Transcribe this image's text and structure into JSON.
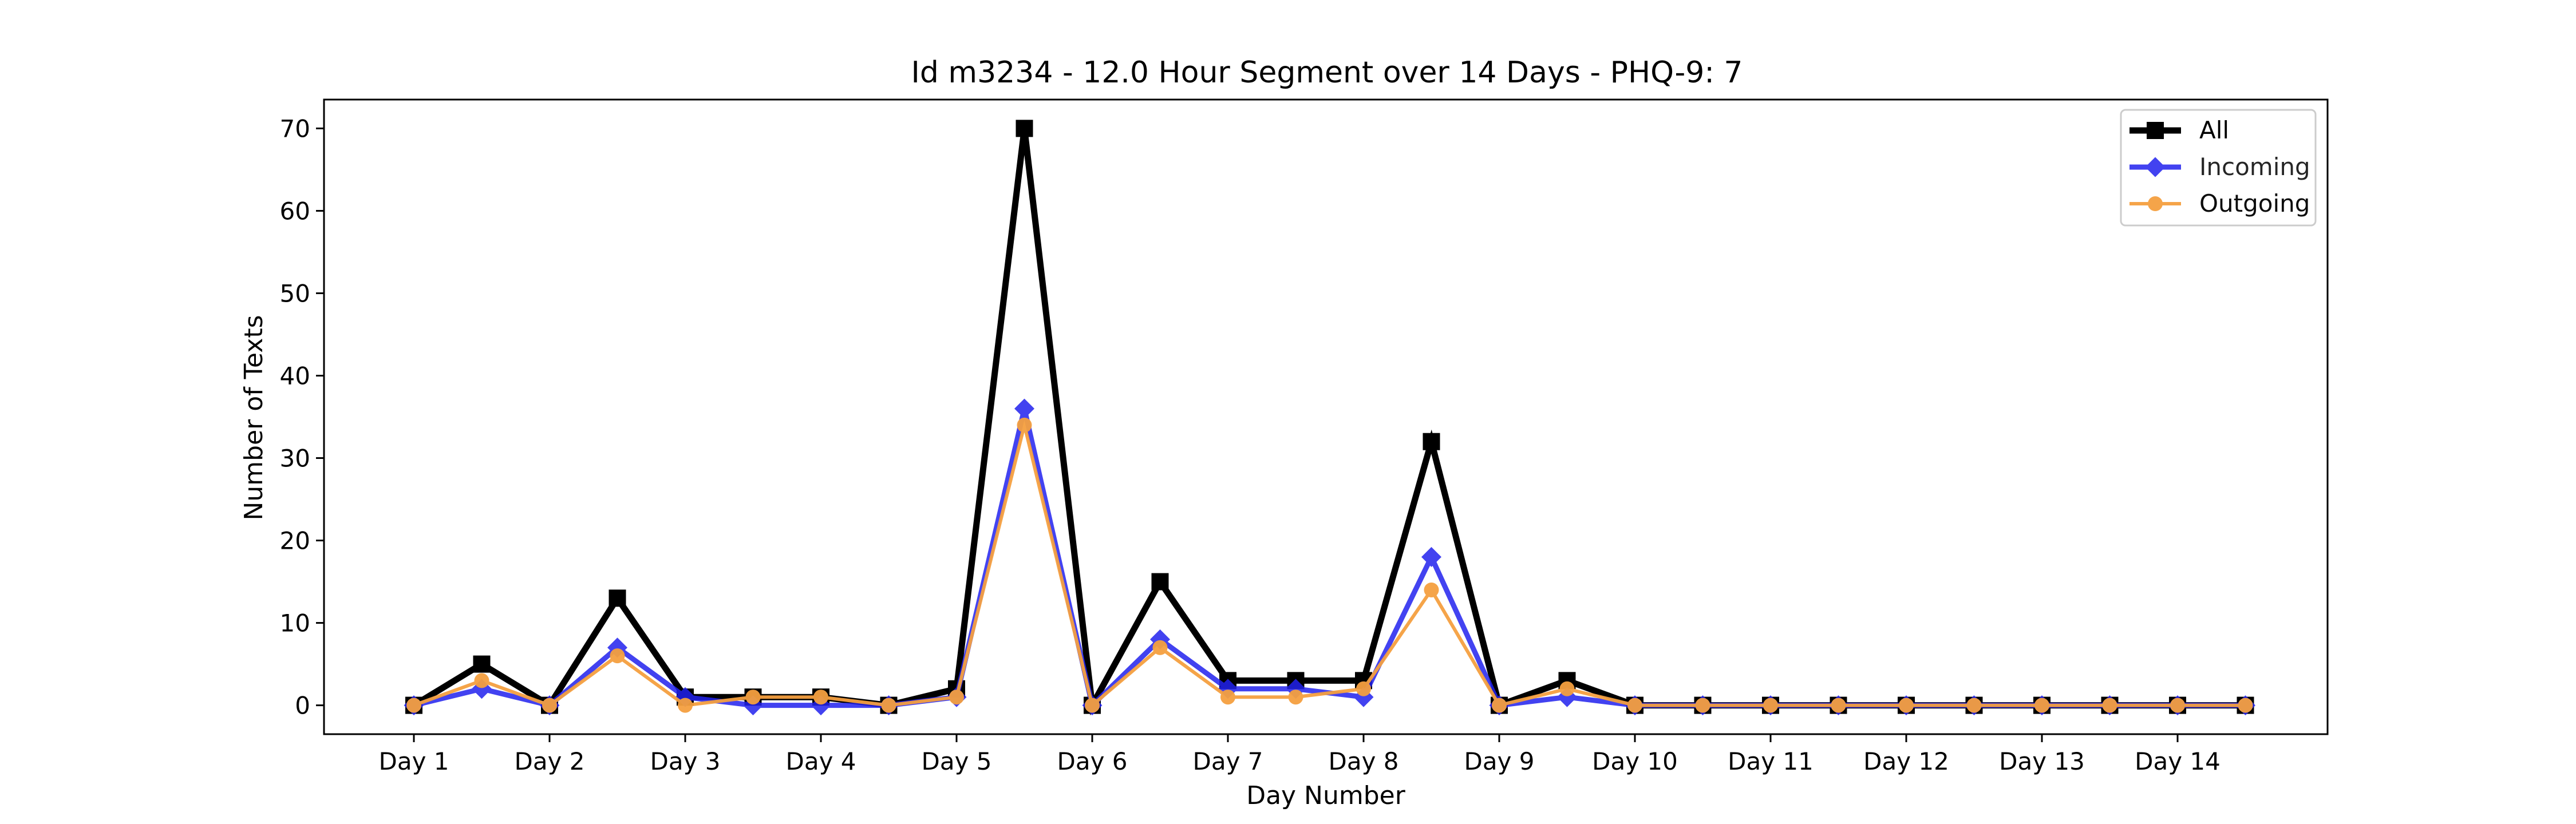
{
  "chart_data": {
    "type": "line",
    "title": "Id m3234 - 12.0 Hour Segment over 14 Days - PHQ-9: 7",
    "xlabel": "Day Number",
    "ylabel": "Number of Texts",
    "x_ticks": [
      "Day 1",
      "Day 2",
      "Day 3",
      "Day 4",
      "Day 5",
      "Day 6",
      "Day 7",
      "Day 8",
      "Day 9",
      "Day 10",
      "Day 11",
      "Day 12",
      "Day 13",
      "Day 14"
    ],
    "y_ticks": [
      0,
      10,
      20,
      30,
      40,
      50,
      60,
      70
    ],
    "ylim": [
      -3.5,
      73.5
    ],
    "grid": false,
    "legend_position": "top-right",
    "series": [
      {
        "name": "All",
        "color": "#000000",
        "marker": "square",
        "values": [
          0,
          5,
          0,
          13,
          1,
          1,
          1,
          0,
          2,
          70,
          0,
          15,
          3,
          3,
          3,
          32,
          0,
          3,
          0,
          0,
          0,
          0,
          0,
          0,
          0,
          0,
          0,
          0
        ]
      },
      {
        "name": "Incoming",
        "color": "#2222ee",
        "marker": "diamond",
        "values": [
          0,
          2,
          0,
          7,
          1,
          0,
          0,
          0,
          1,
          36,
          0,
          8,
          2,
          2,
          1,
          18,
          0,
          1,
          0,
          0,
          0,
          0,
          0,
          0,
          0,
          0,
          0,
          0
        ]
      },
      {
        "name": "Outgoing",
        "color": "#f5a040",
        "marker": "circle",
        "values": [
          0,
          3,
          0,
          6,
          0,
          1,
          1,
          0,
          1,
          34,
          0,
          7,
          1,
          1,
          2,
          14,
          0,
          2,
          0,
          0,
          0,
          0,
          0,
          0,
          0,
          0,
          0,
          0
        ]
      }
    ]
  }
}
